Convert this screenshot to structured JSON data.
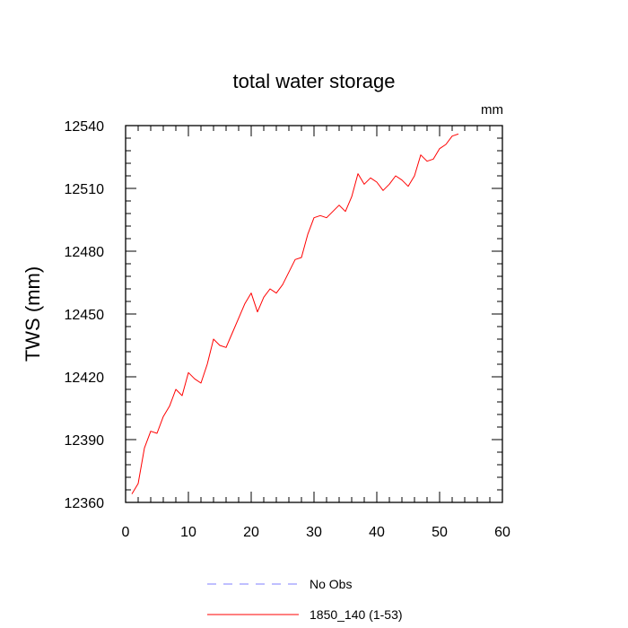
{
  "chart_data": {
    "type": "line",
    "title": "total water storage",
    "unit_label": "mm",
    "ylabel": "TWS  (mm)",
    "xlabel": "",
    "xlim": [
      0,
      60
    ],
    "ylim": [
      12360,
      12540
    ],
    "xticks": [
      0,
      10,
      20,
      30,
      40,
      50,
      60
    ],
    "yticks": [
      12360,
      12390,
      12420,
      12450,
      12480,
      12510,
      12540
    ],
    "series": [
      {
        "name": "No Obs",
        "color": "#7f7fff",
        "dash": "dashed",
        "x": [],
        "values": []
      },
      {
        "name": "1850_140 (1-53)",
        "color": "#ff0000",
        "dash": "solid",
        "x": [
          1,
          2,
          3,
          4,
          5,
          6,
          7,
          8,
          9,
          10,
          11,
          12,
          13,
          14,
          15,
          16,
          17,
          18,
          19,
          20,
          21,
          22,
          23,
          24,
          25,
          26,
          27,
          28,
          29,
          30,
          31,
          32,
          33,
          34,
          35,
          36,
          37,
          38,
          39,
          40,
          41,
          42,
          43,
          44,
          45,
          46,
          47,
          48,
          49,
          50,
          51,
          52,
          53
        ],
        "values": [
          12364,
          12369,
          12386,
          12394,
          12393,
          12401,
          12406,
          12414,
          12411,
          12422,
          12419,
          12417,
          12426,
          12438,
          12435,
          12434,
          12441,
          12448,
          12455,
          12460,
          12451,
          12458,
          12462,
          12460,
          12464,
          12470,
          12476,
          12477,
          12488,
          12496,
          12497,
          12496,
          12499,
          12502,
          12499,
          12506,
          12517,
          12512,
          12515,
          12513,
          12509,
          12512,
          12516,
          12514,
          12511,
          12516,
          12526,
          12523,
          12524,
          12529,
          12531,
          12535,
          12536
        ]
      }
    ]
  }
}
